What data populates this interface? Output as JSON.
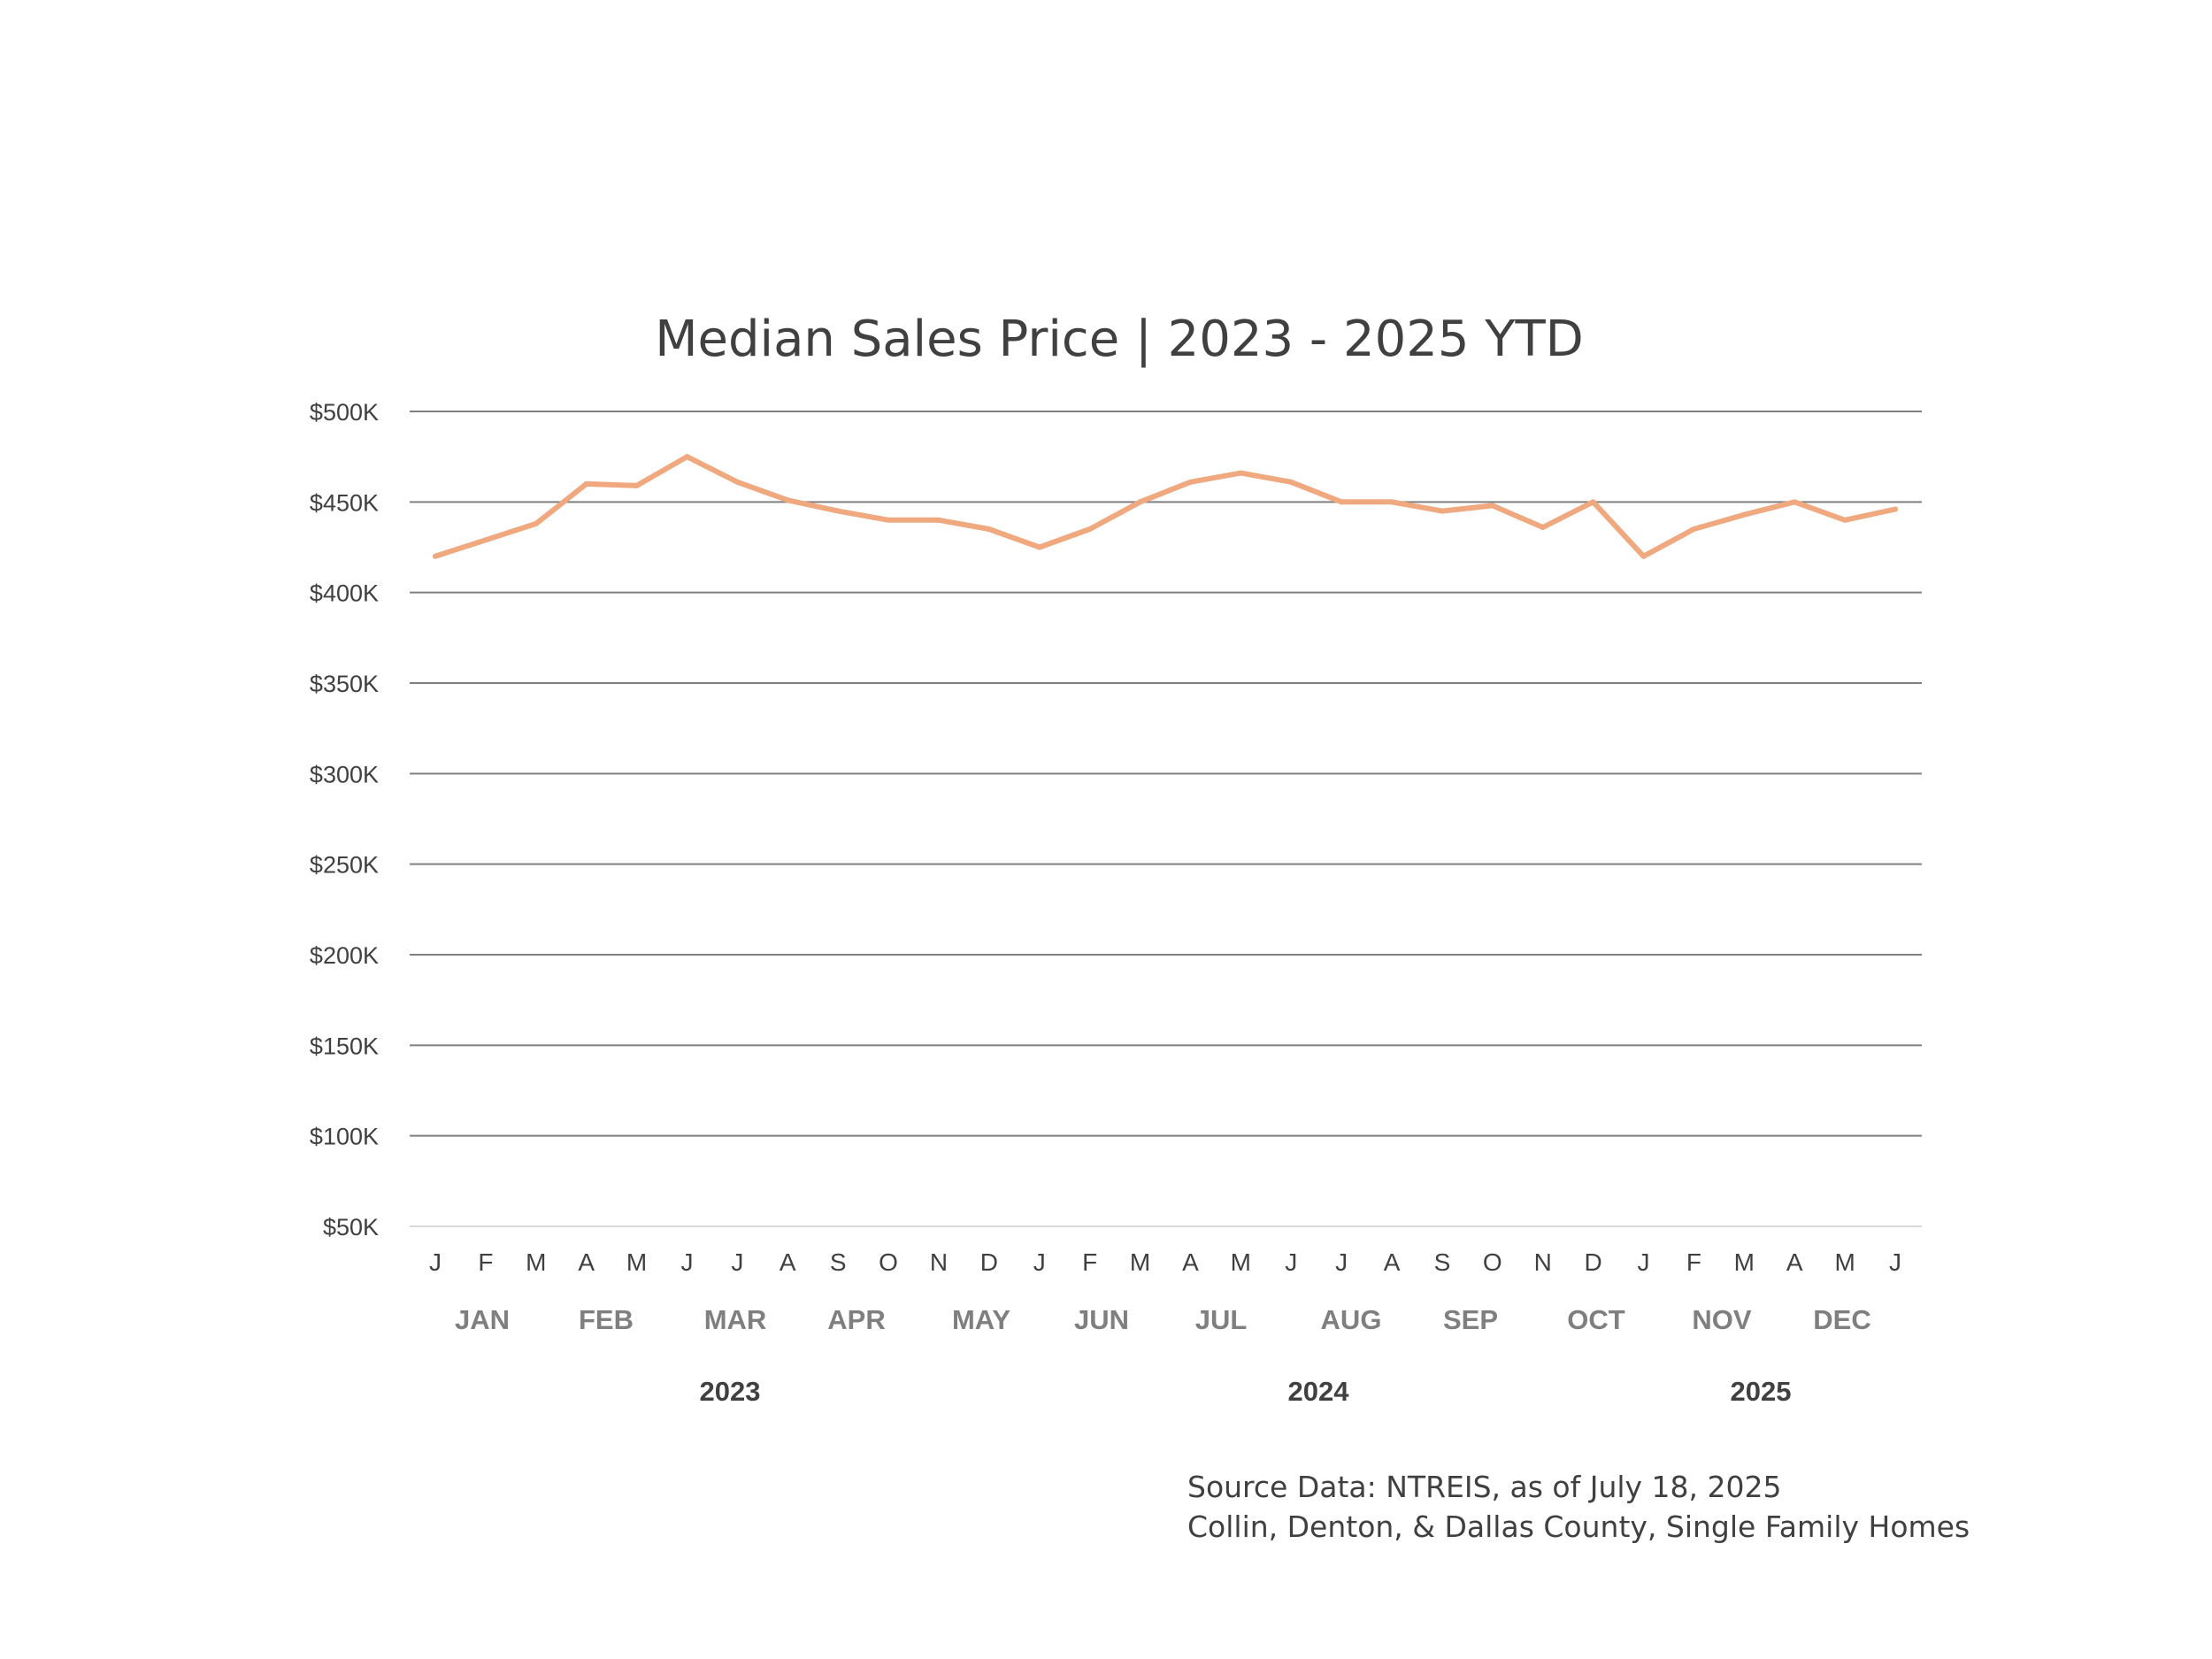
{
  "colors": {
    "line": "#f0a87e",
    "text": "#404040",
    "muted": "#7f7f7f",
    "grid": "#7f7f7f"
  },
  "source": {
    "line1": "Source Data:  NTREIS, as of July 18, 2025",
    "line2": "Collin, Denton, & Dallas County, Single Family Homes"
  },
  "chart_data": {
    "type": "line",
    "title": "Median Sales Price | 2023 - 2025 YTD",
    "xlabel": "",
    "ylabel": "",
    "ylim": [
      50000,
      500000
    ],
    "y_ticks": [
      50000,
      100000,
      150000,
      200000,
      250000,
      300000,
      350000,
      400000,
      450000,
      500000
    ],
    "y_tick_labels": [
      "$50K",
      "$100K",
      "$150K",
      "$200K",
      "$250K",
      "$300K",
      "$350K",
      "$400K",
      "$450K",
      "$500K"
    ],
    "x": [
      "J",
      "F",
      "M",
      "A",
      "M",
      "J",
      "J",
      "A",
      "S",
      "O",
      "N",
      "D",
      "J",
      "F",
      "M",
      "A",
      "M",
      "J",
      "J",
      "A",
      "S",
      "O",
      "N",
      "D",
      "J",
      "F",
      "M",
      "A",
      "M",
      "J"
    ],
    "month_labels": [
      "JAN",
      "FEB",
      "MAR",
      "APR",
      "MAY",
      "JUN",
      "JUL",
      "AUG",
      "SEP",
      "OCT",
      "NOV",
      "DEC"
    ],
    "year_labels": [
      "2023",
      "2024",
      "2025"
    ],
    "grid": true,
    "legend": "none",
    "series": [
      {
        "name": "Median Sales Price",
        "values": [
          420000,
          429000,
          438000,
          460000,
          459000,
          475000,
          461000,
          451000,
          445000,
          440000,
          440000,
          435000,
          425000,
          435000,
          450000,
          461000,
          466000,
          461000,
          450000,
          450000,
          445000,
          448000,
          436000,
          450000,
          420000,
          435000,
          443000,
          450000,
          440000,
          446000
        ]
      }
    ]
  }
}
